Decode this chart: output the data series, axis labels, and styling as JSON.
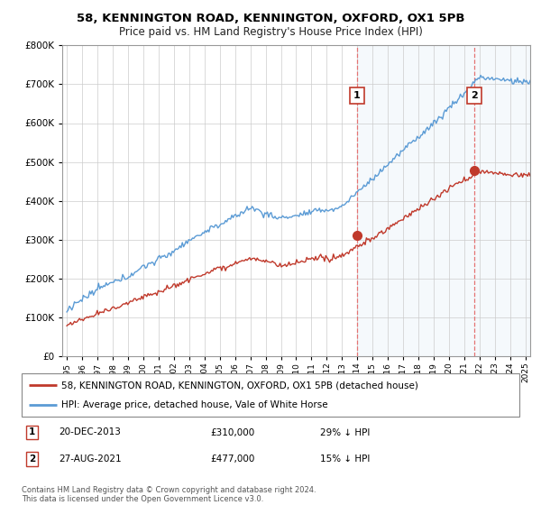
{
  "title": "58, KENNINGTON ROAD, KENNINGTON, OXFORD, OX1 5PB",
  "subtitle": "Price paid vs. HM Land Registry's House Price Index (HPI)",
  "legend_line1": "58, KENNINGTON ROAD, KENNINGTON, OXFORD, OX1 5PB (detached house)",
  "legend_line2": "HPI: Average price, detached house, Vale of White Horse",
  "annotation1_date": "20-DEC-2013",
  "annotation1_price": "£310,000",
  "annotation1_hpi": "29% ↓ HPI",
  "annotation2_date": "27-AUG-2021",
  "annotation2_price": "£477,000",
  "annotation2_hpi": "15% ↓ HPI",
  "footer": "Contains HM Land Registry data © Crown copyright and database right 2024.\nThis data is licensed under the Open Government Licence v3.0.",
  "hpi_color": "#5b9bd5",
  "price_color": "#c0392b",
  "marker_color": "#c0392b",
  "vline_color": "#e57373",
  "shade_color": "#daeaf7",
  "ylim": [
    0,
    800000
  ],
  "yticks": [
    0,
    100000,
    200000,
    300000,
    400000,
    500000,
    600000,
    700000,
    800000
  ],
  "sale1_x": 2013.97,
  "sale1_y": 310000,
  "sale2_x": 2021.65,
  "sale2_y": 477000,
  "xmin": 1995,
  "xmax": 2025.3
}
